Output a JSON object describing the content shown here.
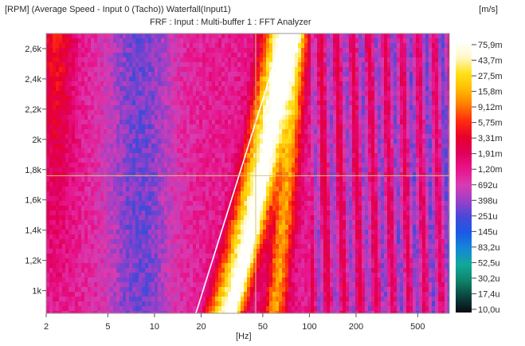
{
  "header": {
    "title_line1": "[RPM] (Average Speed - Input 0 (Tacho))   Waterfall(Input1)",
    "title_line2": "FRF : Input : Multi-buffer 1 : FFT Analyzer",
    "unit": "[m/s]"
  },
  "chart_data": {
    "type": "heatmap",
    "title": "Waterfall(Input1)",
    "subtitle": "FRF : Input : Multi-buffer 1 : FFT Analyzer",
    "xlabel": "[Hz]",
    "ylabel": "[RPM] (Average Speed - Input 0 (Tacho))",
    "x_scale": "log",
    "xlim": [
      2,
      800
    ],
    "ylim": [
      850,
      2700
    ],
    "x_ticks": [
      2,
      5,
      10,
      20,
      50,
      100,
      200,
      500
    ],
    "x_tick_labels": [
      "2",
      "5",
      "10",
      "20",
      "50",
      "100",
      "200",
      "500"
    ],
    "y_ticks": [
      1000,
      1200,
      1400,
      1600,
      1800,
      2000,
      2200,
      2400,
      2600
    ],
    "y_tick_labels": [
      "1k",
      "1,2k",
      "1,4k",
      "1,6k",
      "1,8k",
      "2k",
      "2,2k",
      "2,4k",
      "2,6k"
    ],
    "colorbar_unit": "[m/s]",
    "colorbar_labels": [
      "75,9m",
      "43,7m",
      "27,5m",
      "15,8m",
      "9,12m",
      "5,75m",
      "3,31m",
      "1,91m",
      "1,20m",
      "692u",
      "398u",
      "251u",
      "145u",
      "83,2u",
      "52,5u",
      "30,2u",
      "17,4u",
      "10,0u"
    ],
    "colorbar_colors": [
      "#ffffff",
      "#fff9c8",
      "#ffe11a",
      "#ffbb00",
      "#ff7a00",
      "#ff2a10",
      "#e8002a",
      "#e0005a",
      "#e8148c",
      "#d83cb0",
      "#9a40c8",
      "#4848d8",
      "#1a5ae6",
      "#1488d8",
      "#12a89a",
      "#0e8468",
      "#0a4440",
      "#0a0a12"
    ],
    "cursors": {
      "x": 45,
      "y": 1760
    },
    "order_line": {
      "x_at_ylim_min": 18.5,
      "x_at_ylim_max": 68
    }
  }
}
